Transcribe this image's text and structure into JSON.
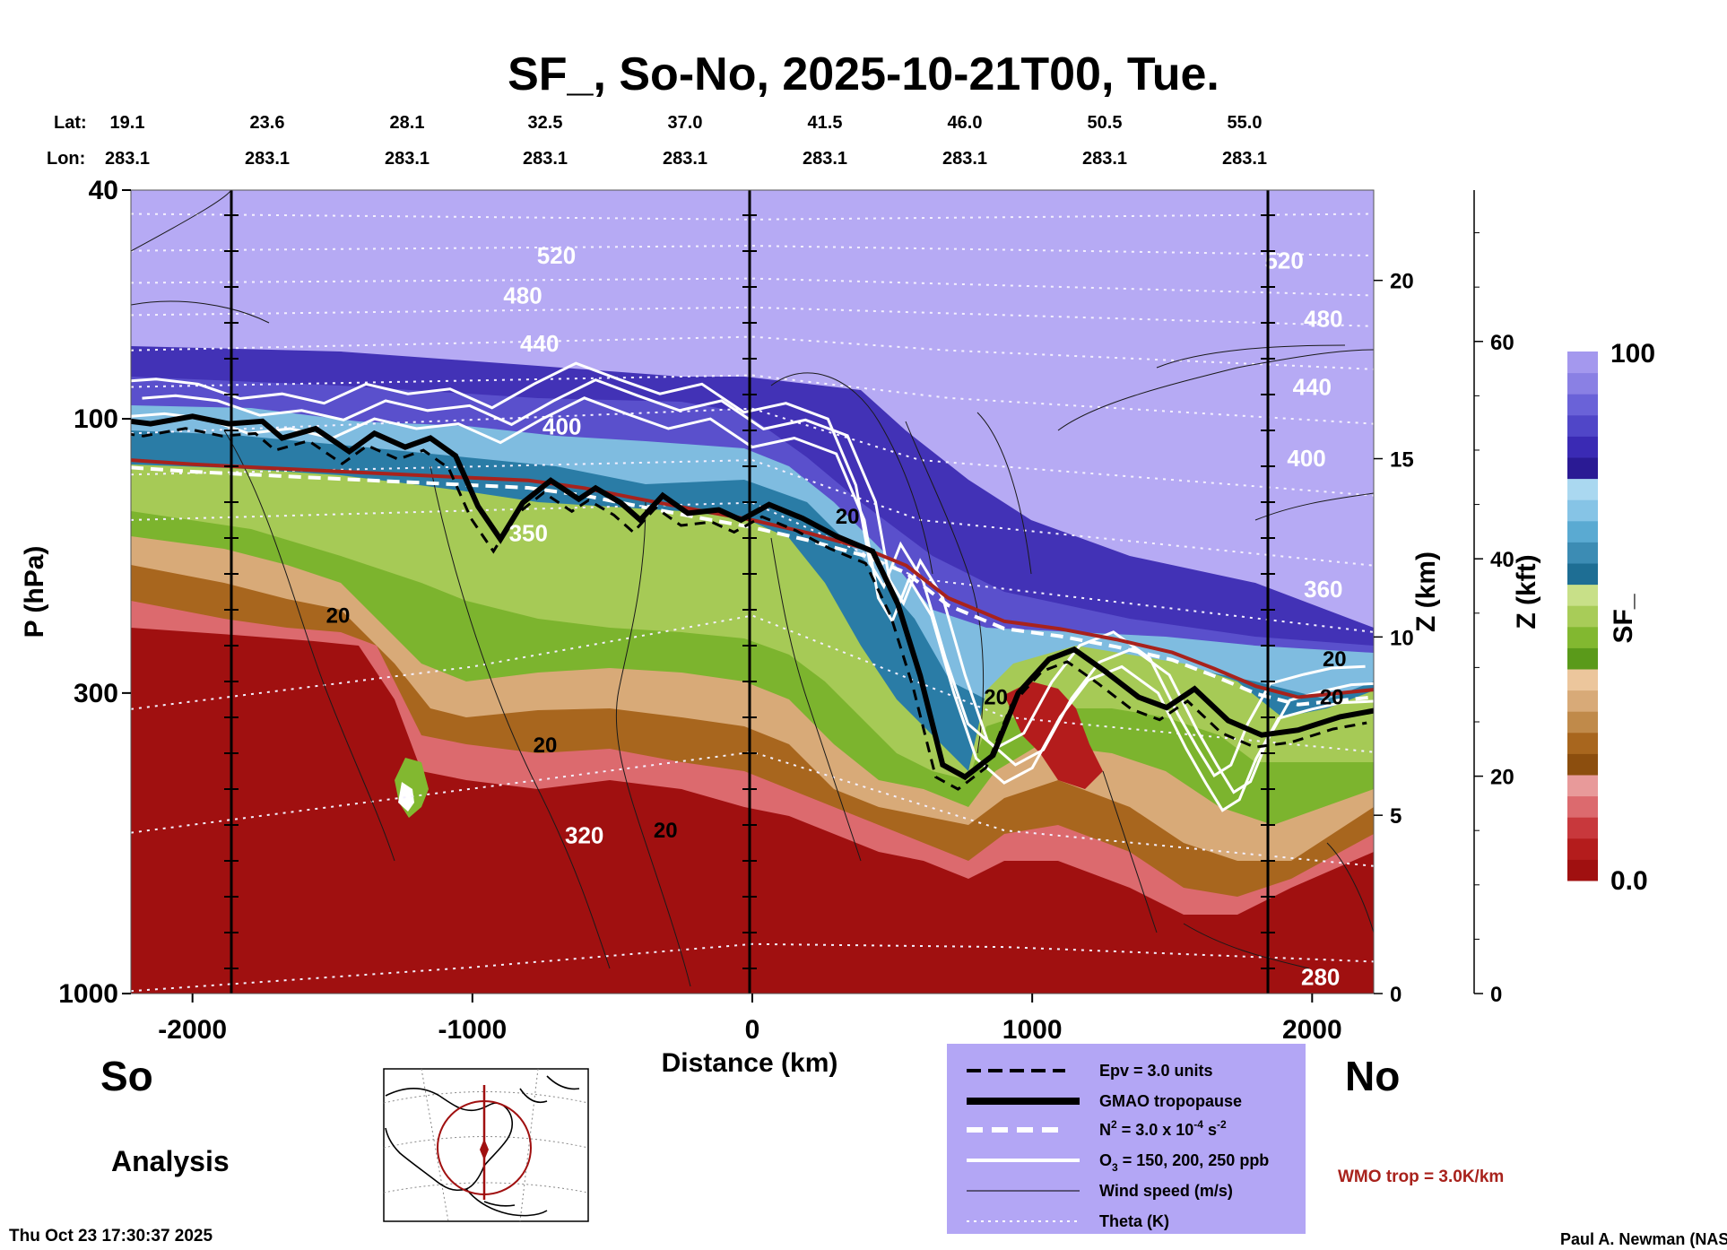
{
  "title": "SF_, So-No, 2025-10-21T00, Tue.",
  "header": {
    "lat_label": "Lat:",
    "lon_label": "Lon:",
    "lats": [
      "19.1",
      "23.6",
      "28.1",
      "32.5",
      "37.0",
      "41.5",
      "46.0",
      "50.5",
      "55.0"
    ],
    "lons": [
      "283.1",
      "283.1",
      "283.1",
      "283.1",
      "283.1",
      "283.1",
      "283.1",
      "283.1",
      "283.1"
    ]
  },
  "labels": {
    "south": "So",
    "north": "No",
    "analysis": "Analysis",
    "timestamp": "Thu Oct 23 17:30:37 2025",
    "credit": "Paul A. Newman (NASA",
    "wmo": "WMO trop = 3.0K/km"
  },
  "legend": {
    "epv": "Epv = 3.0 units",
    "tropopause": "GMAO tropopause",
    "n2_prefix": "N",
    "n2_sup": "2",
    "n2_mid": " = 3.0 x 10",
    "n2_exp": "-4",
    "n2_unit": " s",
    "n2_unit_exp": "-2",
    "o3_prefix": "O",
    "o3_sub": "3",
    "o3_rest": " = 150, 200, 250 ppb",
    "wind": "Wind speed (m/s)",
    "theta": "Theta (K)",
    "bg_color": "#b3a6f5"
  },
  "colorbar": {
    "label": "SF_",
    "max_label": "100",
    "min_label": "0.0",
    "colors": [
      "#a01010",
      "#b41c1c",
      "#c8383c",
      "#dc6a6e",
      "#e89a9a",
      "#8c4e0e",
      "#a8661e",
      "#c08a4a",
      "#d8aa78",
      "#ecc69c",
      "#5a9a1a",
      "#82b830",
      "#a8cc58",
      "#c8e088",
      "#1e6e94",
      "#3c8cb4",
      "#5aaad2",
      "#86c4e6",
      "#aad8f0",
      "#2a1a94",
      "#3a2ab4",
      "#5046c8",
      "#6a62d8",
      "#8a80e4",
      "#a498ee"
    ]
  },
  "chart_data": {
    "type": "heatmap",
    "title": "SF_, So-No, 2025-10-21T00, Tue.",
    "xlabel": "Distance (km)",
    "ylabel": "P (hPa)",
    "xlim": [
      -2220,
      2220
    ],
    "ylim_hpa": [
      1000,
      40
    ],
    "x_ticks": [
      -2000,
      -1000,
      0,
      1000,
      2000
    ],
    "y_ticks": [
      40,
      100,
      300,
      1000
    ],
    "y_tick_labels": [
      "40",
      "100",
      "300",
      "1000"
    ],
    "zkm_label": "Z (km)",
    "zkm_ticks": [
      0,
      5,
      10,
      15,
      20
    ],
    "zkft_label": "Z (kft)",
    "zkft_ticks": [
      0,
      20,
      40,
      60
    ],
    "field_range": [
      0.0,
      100
    ],
    "theta_labels": [
      {
        "text": "520",
        "x": -700,
        "p": 52
      },
      {
        "text": "480",
        "x": -820,
        "p": 61
      },
      {
        "text": "440",
        "x": -760,
        "p": 74
      },
      {
        "text": "400",
        "x": -680,
        "p": 103
      },
      {
        "text": "350",
        "x": -800,
        "p": 158
      },
      {
        "text": "320",
        "x": -600,
        "p": 530
      },
      {
        "text": "520",
        "x": 1900,
        "p": 53
      },
      {
        "text": "480",
        "x": 2040,
        "p": 67
      },
      {
        "text": "440",
        "x": 2000,
        "p": 88
      },
      {
        "text": "400",
        "x": 1980,
        "p": 117
      },
      {
        "text": "360",
        "x": 2040,
        "p": 198
      },
      {
        "text": "280",
        "x": 2030,
        "p": 935
      }
    ],
    "wind_labels": [
      {
        "text": "20",
        "x": -1480,
        "p": 220
      },
      {
        "text": "20",
        "x": -740,
        "p": 370
      },
      {
        "text": "20",
        "x": -310,
        "p": 520
      },
      {
        "text": "20",
        "x": 340,
        "p": 148
      },
      {
        "text": "20",
        "x": 870,
        "p": 305
      },
      {
        "text": "20",
        "x": 2080,
        "p": 262
      },
      {
        "text": "20",
        "x": 2070,
        "p": 305
      }
    ],
    "tropopause_p": [
      [
        -2220,
        101
      ],
      [
        -2150,
        102
      ],
      [
        -2000,
        99
      ],
      [
        -1870,
        102
      ],
      [
        -1750,
        101
      ],
      [
        -1680,
        108
      ],
      [
        -1560,
        104
      ],
      [
        -1440,
        114
      ],
      [
        -1350,
        106
      ],
      [
        -1240,
        112
      ],
      [
        -1150,
        108
      ],
      [
        -1060,
        116
      ],
      [
        -980,
        142
      ],
      [
        -900,
        162
      ],
      [
        -820,
        140
      ],
      [
        -720,
        128
      ],
      [
        -620,
        138
      ],
      [
        -560,
        132
      ],
      [
        -470,
        140
      ],
      [
        -400,
        150
      ],
      [
        -320,
        136
      ],
      [
        -230,
        146
      ],
      [
        -120,
        144
      ],
      [
        -40,
        150
      ],
      [
        60,
        141
      ],
      [
        180,
        149
      ],
      [
        300,
        160
      ],
      [
        430,
        170
      ],
      [
        520,
        210
      ],
      [
        600,
        280
      ],
      [
        680,
        400
      ],
      [
        760,
        420
      ],
      [
        860,
        385
      ],
      [
        950,
        300
      ],
      [
        1060,
        262
      ],
      [
        1150,
        252
      ],
      [
        1260,
        275
      ],
      [
        1380,
        305
      ],
      [
        1480,
        318
      ],
      [
        1580,
        295
      ],
      [
        1700,
        335
      ],
      [
        1820,
        355
      ],
      [
        1950,
        348
      ],
      [
        2100,
        330
      ],
      [
        2220,
        322
      ]
    ],
    "wmo_tropopause_p": [
      [
        -2220,
        118
      ],
      [
        -2000,
        120
      ],
      [
        -1700,
        122
      ],
      [
        -1400,
        124
      ],
      [
        -1100,
        126
      ],
      [
        -800,
        128
      ],
      [
        -600,
        132
      ],
      [
        -400,
        138
      ],
      [
        -200,
        144
      ],
      [
        0,
        150
      ],
      [
        200,
        158
      ],
      [
        400,
        168
      ],
      [
        550,
        180
      ],
      [
        700,
        205
      ],
      [
        900,
        225
      ],
      [
        1100,
        232
      ],
      [
        1300,
        242
      ],
      [
        1500,
        255
      ],
      [
        1650,
        272
      ],
      [
        1800,
        292
      ],
      [
        1950,
        305
      ],
      [
        2100,
        300
      ],
      [
        2220,
        296
      ]
    ],
    "ozone_150_p": [
      [
        -2220,
        99
      ],
      [
        -2100,
        98
      ],
      [
        -1950,
        100
      ],
      [
        -1800,
        106
      ],
      [
        -1650,
        104
      ],
      [
        -1500,
        108
      ],
      [
        -1350,
        100
      ],
      [
        -1200,
        104
      ],
      [
        -1050,
        102
      ],
      [
        -900,
        110
      ],
      [
        -750,
        100
      ],
      [
        -600,
        92
      ],
      [
        -450,
        98
      ],
      [
        -300,
        104
      ],
      [
        -150,
        100
      ],
      [
        0,
        112
      ],
      [
        150,
        108
      ],
      [
        300,
        115
      ],
      [
        400,
        150
      ],
      [
        450,
        205
      ],
      [
        500,
        225
      ],
      [
        560,
        190
      ],
      [
        640,
        220
      ],
      [
        720,
        300
      ],
      [
        800,
        390
      ],
      [
        900,
        430
      ],
      [
        1000,
        405
      ],
      [
        1100,
        330
      ],
      [
        1200,
        285
      ],
      [
        1320,
        270
      ],
      [
        1450,
        300
      ],
      [
        1550,
        375
      ],
      [
        1620,
        430
      ],
      [
        1680,
        480
      ],
      [
        1740,
        460
      ],
      [
        1800,
        390
      ],
      [
        1880,
        332
      ],
      [
        2000,
        320
      ],
      [
        2100,
        312
      ],
      [
        2220,
        310
      ]
    ]
  }
}
